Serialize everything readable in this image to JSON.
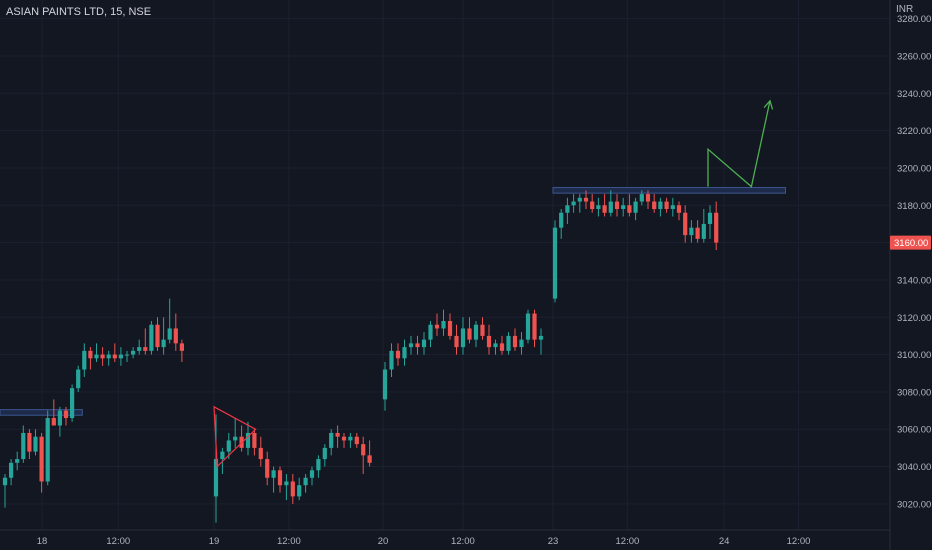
{
  "header": {
    "symbol": "ASIAN PAINTS LTD, 15, NSE",
    "currency": "INR"
  },
  "colors": {
    "background": "#131722",
    "up": "#26a69a",
    "down": "#ef5350",
    "zone_fill": "#1e2a4a",
    "zone_border": "#3a5790",
    "pattern_line": "#f23645",
    "projection_line": "#4caf50",
    "last_price_bg": "#ef5350"
  },
  "chart_data": {
    "type": "candlestick",
    "instrument": "ASIAN PAINTS LTD",
    "interval": "15",
    "exchange": "NSE",
    "ylim": [
      3006,
      3290
    ],
    "y_ticks": [
      3020,
      3040,
      3060,
      3080,
      3100,
      3120,
      3140,
      3160,
      3180,
      3200,
      3220,
      3240,
      3260,
      3280
    ],
    "y_tick_labels": [
      "3020.00",
      "3040.00",
      "3060.00",
      "3080.00",
      "3100.00",
      "3120.00",
      "3140.00",
      "3160.00",
      "3180.00",
      "3200.00",
      "3220.00",
      "3240.00",
      "3260.00",
      "3280.00"
    ],
    "x_labels": [
      "18",
      "12:00",
      "19",
      "12:00",
      "20",
      "12:00",
      "23",
      "12:00",
      "24",
      "12:00"
    ],
    "last_price": 3160,
    "last_price_label": "3160.00",
    "sessions": [
      {
        "day": "18",
        "candles": [
          [
            3030,
            3036,
            3018,
            3034
          ],
          [
            3034,
            3044,
            3030,
            3042
          ],
          [
            3042,
            3048,
            3038,
            3044
          ],
          [
            3044,
            3062,
            3042,
            3058
          ],
          [
            3058,
            3060,
            3044,
            3048
          ],
          [
            3048,
            3060,
            3046,
            3056
          ],
          [
            3056,
            3058,
            3026,
            3032
          ],
          [
            3032,
            3070,
            3030,
            3066
          ],
          [
            3066,
            3076,
            3062,
            3062
          ],
          [
            3062,
            3072,
            3056,
            3070
          ],
          [
            3070,
            3072,
            3062,
            3066
          ],
          [
            3066,
            3084,
            3064,
            3082
          ],
          [
            3082,
            3094,
            3080,
            3092
          ],
          [
            3092,
            3106,
            3088,
            3102
          ],
          [
            3102,
            3104,
            3092,
            3098
          ],
          [
            3098,
            3106,
            3096,
            3100
          ],
          [
            3100,
            3104,
            3094,
            3098
          ],
          [
            3098,
            3102,
            3094,
            3100
          ],
          [
            3100,
            3106,
            3096,
            3098
          ],
          [
            3098,
            3104,
            3094,
            3100
          ],
          [
            3100,
            3102,
            3096,
            3100
          ],
          [
            3100,
            3104,
            3098,
            3102
          ],
          [
            3102,
            3108,
            3100,
            3104
          ],
          [
            3104,
            3114,
            3100,
            3102
          ],
          [
            3102,
            3118,
            3100,
            3116
          ],
          [
            3116,
            3120,
            3102,
            3104
          ],
          [
            3104,
            3120,
            3100,
            3108
          ],
          [
            3108,
            3130,
            3106,
            3114
          ],
          [
            3114,
            3122,
            3102,
            3106
          ],
          [
            3106,
            3108,
            3096,
            3102
          ]
        ]
      },
      {
        "day": "19",
        "candles": [
          [
            3024,
            3068,
            3010,
            3044
          ],
          [
            3044,
            3050,
            3036,
            3048
          ],
          [
            3048,
            3058,
            3044,
            3054
          ],
          [
            3054,
            3066,
            3050,
            3056
          ],
          [
            3056,
            3062,
            3048,
            3050
          ],
          [
            3050,
            3064,
            3046,
            3058
          ],
          [
            3058,
            3060,
            3046,
            3050
          ],
          [
            3050,
            3056,
            3040,
            3044
          ],
          [
            3044,
            3048,
            3030,
            3034
          ],
          [
            3034,
            3040,
            3026,
            3038
          ],
          [
            3038,
            3040,
            3026,
            3030
          ],
          [
            3030,
            3036,
            3022,
            3032
          ],
          [
            3032,
            3036,
            3020,
            3024
          ],
          [
            3024,
            3034,
            3022,
            3030
          ],
          [
            3030,
            3036,
            3026,
            3034
          ],
          [
            3034,
            3040,
            3030,
            3038
          ],
          [
            3038,
            3046,
            3034,
            3044
          ],
          [
            3044,
            3052,
            3040,
            3050
          ],
          [
            3050,
            3060,
            3046,
            3058
          ],
          [
            3058,
            3062,
            3050,
            3056
          ],
          [
            3056,
            3058,
            3050,
            3054
          ],
          [
            3054,
            3058,
            3050,
            3056
          ],
          [
            3056,
            3058,
            3050,
            3052
          ],
          [
            3052,
            3056,
            3036,
            3046
          ],
          [
            3046,
            3054,
            3040,
            3042
          ]
        ]
      },
      {
        "day": "20",
        "candles": [
          [
            3076,
            3096,
            3070,
            3092
          ],
          [
            3092,
            3106,
            3088,
            3102
          ],
          [
            3102,
            3106,
            3094,
            3098
          ],
          [
            3098,
            3108,
            3094,
            3104
          ],
          [
            3104,
            3110,
            3100,
            3106
          ],
          [
            3106,
            3110,
            3100,
            3104
          ],
          [
            3104,
            3112,
            3100,
            3108
          ],
          [
            3108,
            3118,
            3104,
            3116
          ],
          [
            3116,
            3122,
            3110,
            3114
          ],
          [
            3114,
            3124,
            3110,
            3118
          ],
          [
            3118,
            3122,
            3108,
            3110
          ],
          [
            3110,
            3116,
            3100,
            3104
          ],
          [
            3104,
            3120,
            3100,
            3114
          ],
          [
            3114,
            3120,
            3106,
            3108
          ],
          [
            3108,
            3118,
            3104,
            3116
          ],
          [
            3116,
            3120,
            3108,
            3110
          ],
          [
            3110,
            3116,
            3100,
            3104
          ],
          [
            3104,
            3108,
            3100,
            3106
          ],
          [
            3106,
            3110,
            3100,
            3102
          ],
          [
            3102,
            3112,
            3100,
            3110
          ],
          [
            3110,
            3114,
            3102,
            3104
          ],
          [
            3104,
            3112,
            3100,
            3108
          ],
          [
            3108,
            3124,
            3106,
            3122
          ],
          [
            3122,
            3124,
            3104,
            3108
          ],
          [
            3108,
            3114,
            3100,
            3110
          ]
        ]
      },
      {
        "day": "23",
        "candles": [
          [
            3130,
            3172,
            3128,
            3168
          ],
          [
            3168,
            3178,
            3162,
            3176
          ],
          [
            3176,
            3184,
            3170,
            3180
          ],
          [
            3180,
            3186,
            3176,
            3182
          ],
          [
            3182,
            3186,
            3176,
            3184
          ],
          [
            3184,
            3188,
            3178,
            3182
          ],
          [
            3182,
            3186,
            3176,
            3178
          ],
          [
            3178,
            3184,
            3174,
            3180
          ],
          [
            3180,
            3186,
            3174,
            3176
          ],
          [
            3176,
            3188,
            3174,
            3182
          ],
          [
            3182,
            3186,
            3174,
            3178
          ],
          [
            3178,
            3184,
            3174,
            3180
          ],
          [
            3180,
            3186,
            3174,
            3176
          ],
          [
            3176,
            3184,
            3172,
            3182
          ],
          [
            3182,
            3188,
            3180,
            3186
          ],
          [
            3186,
            3188,
            3178,
            3182
          ],
          [
            3182,
            3186,
            3176,
            3178
          ],
          [
            3178,
            3184,
            3174,
            3182
          ],
          [
            3182,
            3184,
            3176,
            3178
          ],
          [
            3178,
            3184,
            3174,
            3180
          ],
          [
            3180,
            3182,
            3172,
            3176
          ],
          [
            3176,
            3180,
            3160,
            3164
          ],
          [
            3164,
            3172,
            3160,
            3168
          ],
          [
            3168,
            3172,
            3160,
            3162
          ],
          [
            3162,
            3178,
            3160,
            3170
          ],
          [
            3170,
            3180,
            3162,
            3176
          ],
          [
            3176,
            3182,
            3156,
            3160
          ]
        ]
      }
    ],
    "annotations": [
      {
        "type": "horizontal_zone",
        "session": "18",
        "from_bar": -2,
        "to_bar": 13,
        "low": 3067.5,
        "high": 3070.5
      },
      {
        "type": "horizontal_zone",
        "session": "23",
        "from_bar": 0,
        "to_bar": 37.5,
        "low": 3186.5,
        "high": 3189.5
      },
      {
        "type": "triangle",
        "points": [
          {
            "session": "19",
            "bar": 0,
            "price": 3072
          },
          {
            "session": "19",
            "bar": 6.5,
            "price": 3060
          },
          {
            "session": "19",
            "bar": 0.5,
            "price": 3040
          }
        ]
      },
      {
        "type": "projection_path",
        "points": [
          {
            "session": "23",
            "bar": 25,
            "price": 3190
          },
          {
            "session": "23",
            "bar": 25,
            "price": 3210
          },
          {
            "session": "23",
            "bar": 32,
            "price": 3190
          },
          {
            "session": "23",
            "bar": 35,
            "price": 3236
          }
        ],
        "arrow_end": true
      }
    ]
  }
}
